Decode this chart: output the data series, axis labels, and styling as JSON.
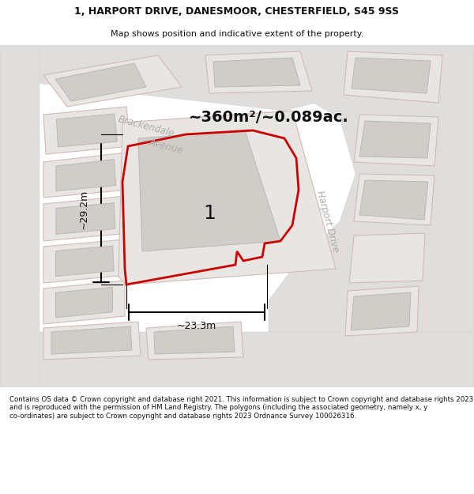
{
  "title_line1": "1, HARPORT DRIVE, DANESMOOR, CHESTERFIELD, S45 9SS",
  "title_line2": "Map shows position and indicative extent of the property.",
  "area_label": "~360m²/~0.089ac.",
  "width_label": "~23.3m",
  "height_label": "~29.2m",
  "plot_number": "1",
  "street_label_brackendale": "Brackendale",
  "street_label_avenue": "Avenue",
  "street_label_harport": "Harport Drive",
  "footer_text": "Contains OS data © Crown copyright and database right 2021. This information is subject to Crown copyright and database rights 2023 and is reproduced with the permission of HM Land Registry. The polygons (including the associated geometry, namely x, y co-ordinates) are subject to Crown copyright and database rights 2023 Ordnance Survey 100026316.",
  "map_bg": "#eeece8",
  "road_fill": "#e0dedd",
  "parcel_fill": "#e8e6e2",
  "parcel_stroke": "#d4b8b8",
  "building_fill": "#d0cdc9",
  "building_stroke": "#bbb8b4",
  "plot_stroke": "#cc0000",
  "street_color": "#b0aca8",
  "dim_color": "#111111",
  "title_color": "#111111",
  "footer_color": "#111111"
}
